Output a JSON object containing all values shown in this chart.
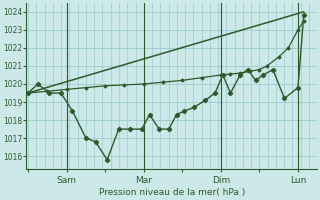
{
  "bg_color": "#cce8e8",
  "grid_color": "#99cccc",
  "line_color": "#2d5a2d",
  "title": "Pression niveau de la mer( hPa )",
  "yticks": [
    1016,
    1017,
    1018,
    1019,
    1020,
    1021,
    1022,
    1023,
    1024
  ],
  "ylim": [
    1015.3,
    1024.5
  ],
  "xtick_labels": [
    "",
    "Sam",
    "",
    "Mar",
    "",
    "Dim",
    "",
    "Lun"
  ],
  "xtick_positions": [
    0,
    1,
    2,
    3,
    4,
    5,
    6,
    7
  ],
  "vlines": [
    1,
    3,
    5,
    7
  ],
  "xlim": [
    -0.05,
    7.5
  ],
  "jagged_x": [
    0.0,
    0.25,
    0.55,
    0.85,
    1.15,
    1.5,
    1.75,
    2.05,
    2.35,
    2.65,
    2.95,
    3.15,
    3.4,
    3.65,
    3.85,
    4.05,
    4.3,
    4.6,
    4.85,
    5.05,
    5.25,
    5.5,
    5.7,
    5.9,
    6.1,
    6.35,
    6.65,
    7.0,
    7.15
  ],
  "jagged_y": [
    1019.5,
    1020.0,
    1019.5,
    1019.5,
    1018.5,
    1017.0,
    1016.8,
    1015.8,
    1017.5,
    1017.5,
    1017.5,
    1018.3,
    1017.5,
    1017.5,
    1018.3,
    1018.5,
    1018.7,
    1019.1,
    1019.5,
    1020.5,
    1019.5,
    1020.5,
    1020.8,
    1020.2,
    1020.5,
    1020.8,
    1019.2,
    1019.8,
    1023.8
  ],
  "smooth_x": [
    0.0,
    0.5,
    1.0,
    1.5,
    2.0,
    2.5,
    3.0,
    3.5,
    4.0,
    4.5,
    5.0,
    5.25,
    5.5,
    5.75,
    6.0,
    6.2,
    6.5,
    6.75,
    7.0,
    7.15
  ],
  "smooth_y": [
    1019.5,
    1019.6,
    1019.7,
    1019.8,
    1019.9,
    1019.95,
    1020.0,
    1020.1,
    1020.2,
    1020.35,
    1020.5,
    1020.55,
    1020.6,
    1020.7,
    1020.8,
    1021.0,
    1021.5,
    1022.0,
    1023.0,
    1023.5
  ],
  "trend_x": [
    0.0,
    7.15
  ],
  "trend_y": [
    1019.5,
    1024.0
  ]
}
